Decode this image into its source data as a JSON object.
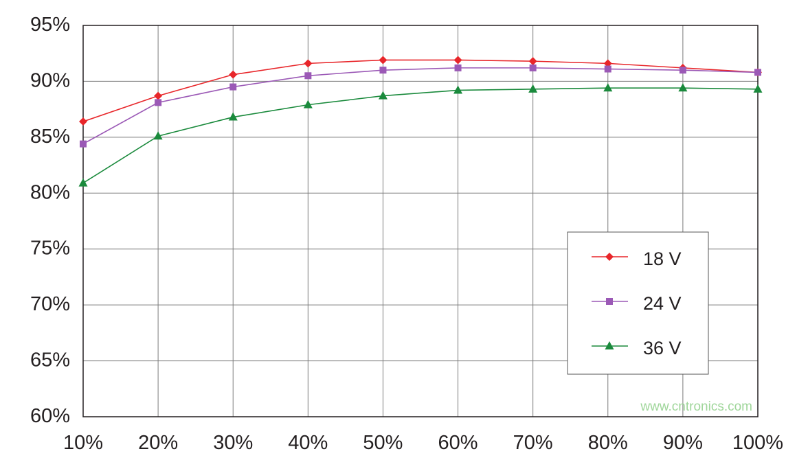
{
  "chart_data": {
    "type": "line",
    "title": "",
    "xlabel": "",
    "ylabel": "",
    "categories": [
      "10%",
      "20%",
      "30%",
      "40%",
      "50%",
      "60%",
      "70%",
      "80%",
      "90%",
      "100%"
    ],
    "x": [
      10,
      20,
      30,
      40,
      50,
      60,
      70,
      80,
      90,
      100
    ],
    "ylim": [
      60,
      95
    ],
    "yticks": [
      60,
      65,
      70,
      75,
      80,
      85,
      90,
      95
    ],
    "ytick_labels": [
      "60%",
      "65%",
      "70%",
      "75%",
      "80%",
      "85%",
      "90%",
      "95%"
    ],
    "grid": true,
    "legend_position": "right-lower",
    "series": [
      {
        "name": "18 V",
        "color": "#e8262a",
        "marker": "diamond",
        "values": [
          86.4,
          88.7,
          90.6,
          91.6,
          91.9,
          91.9,
          91.8,
          91.6,
          91.2,
          90.8
        ]
      },
      {
        "name": "24 V",
        "color": "#9b59b6",
        "marker": "square",
        "values": [
          84.4,
          88.1,
          89.5,
          90.5,
          91.0,
          91.2,
          91.2,
          91.1,
          91.0,
          90.8
        ]
      },
      {
        "name": "36 V",
        "color": "#1a8a3c",
        "marker": "triangle",
        "values": [
          80.9,
          85.1,
          86.8,
          87.9,
          88.7,
          89.2,
          89.3,
          89.4,
          89.4,
          89.3
        ]
      }
    ]
  },
  "watermark": "www.cntronics.com"
}
